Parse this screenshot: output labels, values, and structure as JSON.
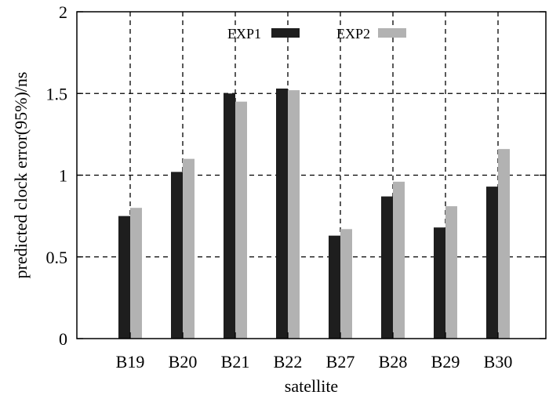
{
  "chart_data": {
    "type": "bar",
    "title": "",
    "xlabel": "satellite",
    "ylabel": "predicted clock error(95%)/ns",
    "categories": [
      "B19",
      "B20",
      "B21",
      "B22",
      "B27",
      "B28",
      "B29",
      "B30"
    ],
    "series": [
      {
        "name": "EXP1",
        "color": "#1e1e1e",
        "values": [
          0.75,
          1.02,
          1.5,
          1.53,
          0.63,
          0.87,
          0.68,
          0.93
        ]
      },
      {
        "name": "EXP2",
        "color": "#b2b2b2",
        "values": [
          0.8,
          1.1,
          1.45,
          1.52,
          0.67,
          0.96,
          0.81,
          1.16
        ]
      }
    ],
    "ylim": [
      0,
      2
    ],
    "yticks": [
      0,
      0.5,
      1,
      1.5,
      2
    ],
    "ytick_labels": [
      "0",
      "0.5",
      "1",
      "1.5",
      "2"
    ],
    "grid": "dashed, at each category and y tick",
    "legend_position": "top-center"
  }
}
